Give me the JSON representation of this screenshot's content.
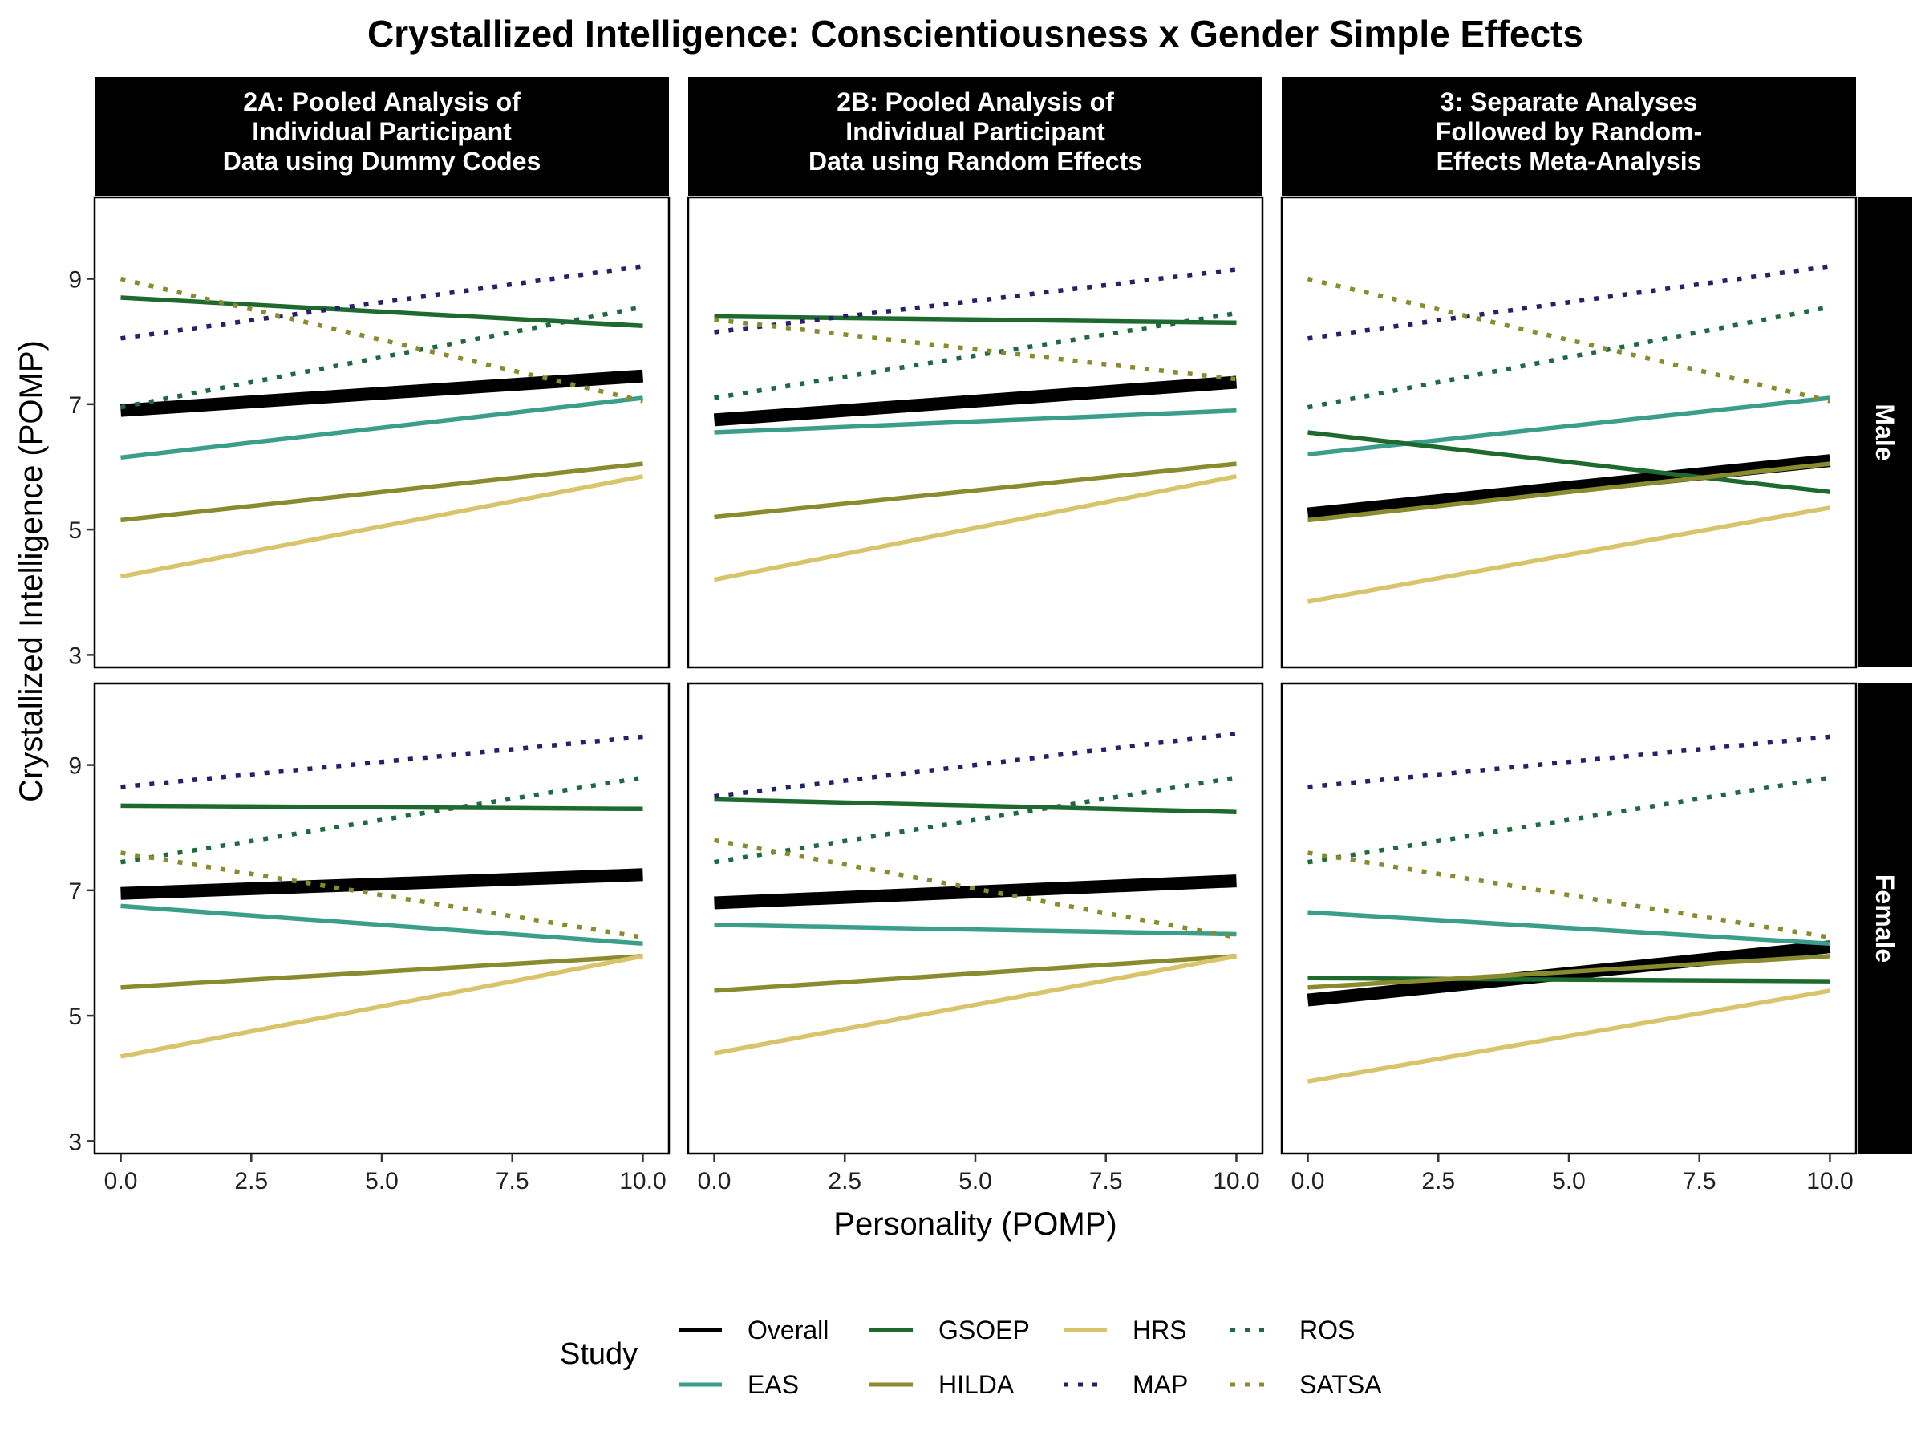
{
  "chart_data": {
    "type": "line",
    "title": "Crystallized Intelligence: Conscientiousness x Gender Simple Effects",
    "xlabel": "Personality (POMP)",
    "ylabel": "Crystallized Intelligence (POMP)",
    "xlim": [
      -0.5,
      10.5
    ],
    "ylim": [
      2.8,
      10.3
    ],
    "x_ticks": [
      "0.0",
      "2.5",
      "5.0",
      "7.5",
      "10.0"
    ],
    "y_ticks": [
      "3",
      "5",
      "7",
      "9"
    ],
    "grid": false,
    "legend_position": "bottom",
    "legend_title": "Study",
    "columns": [
      {
        "line1": "2A: Pooled Analysis of",
        "line2": "Individual Participant",
        "line3": "Data using Dummy Codes"
      },
      {
        "line1": "2B: Pooled Analysis of",
        "line2": "Individual Participant",
        "line3": "Data using Random Effects"
      },
      {
        "line1": "3: Separate Analyses",
        "line2": "Followed by Random-",
        "line3": "Effects Meta-Analysis"
      }
    ],
    "rows": [
      "Male",
      "Female"
    ],
    "studies": [
      {
        "name": "Overall",
        "color": "#000000",
        "dash": "solid",
        "weight": "thick"
      },
      {
        "name": "EAS",
        "color": "#3a9e8b",
        "dash": "solid",
        "weight": "normal"
      },
      {
        "name": "GSOEP",
        "color": "#1e6a2e",
        "dash": "solid",
        "weight": "normal"
      },
      {
        "name": "HILDA",
        "color": "#8a8a2e",
        "dash": "solid",
        "weight": "normal"
      },
      {
        "name": "HRS",
        "color": "#d8c46b",
        "dash": "solid",
        "weight": "normal"
      },
      {
        "name": "MAP",
        "color": "#24206a",
        "dash": "dotted",
        "weight": "normal"
      },
      {
        "name": "ROS",
        "color": "#1e6a3e",
        "dash": "dotted",
        "weight": "normal"
      },
      {
        "name": "SATSA",
        "color": "#8a8a2e",
        "dash": "dotted",
        "weight": "normal"
      }
    ],
    "legend_layout": [
      [
        "Overall",
        "GSOEP",
        "HRS",
        "ROS"
      ],
      [
        "EAS",
        "HILDA",
        "MAP",
        "SATSA"
      ]
    ],
    "panels": [
      {
        "column": 0,
        "row": 0,
        "series": [
          {
            "study": "Overall",
            "x": [
              0,
              10
            ],
            "y": [
              6.9,
              7.45
            ]
          },
          {
            "study": "EAS",
            "x": [
              0,
              10
            ],
            "y": [
              6.15,
              7.1
            ]
          },
          {
            "study": "GSOEP",
            "x": [
              0,
              10
            ],
            "y": [
              8.7,
              8.25
            ]
          },
          {
            "study": "HILDA",
            "x": [
              0,
              10
            ],
            "y": [
              5.15,
              6.05
            ]
          },
          {
            "study": "HRS",
            "x": [
              0,
              10
            ],
            "y": [
              4.25,
              5.85
            ]
          },
          {
            "study": "MAP",
            "x": [
              0,
              10
            ],
            "y": [
              8.05,
              9.2
            ]
          },
          {
            "study": "ROS",
            "x": [
              0,
              10
            ],
            "y": [
              6.95,
              8.55
            ]
          },
          {
            "study": "SATSA",
            "x": [
              0,
              10
            ],
            "y": [
              9.0,
              7.05
            ]
          }
        ]
      },
      {
        "column": 1,
        "row": 0,
        "series": [
          {
            "study": "Overall",
            "x": [
              0,
              10
            ],
            "y": [
              6.75,
              7.35
            ]
          },
          {
            "study": "EAS",
            "x": [
              0,
              10
            ],
            "y": [
              6.55,
              6.9
            ]
          },
          {
            "study": "GSOEP",
            "x": [
              0,
              10
            ],
            "y": [
              8.4,
              8.3
            ]
          },
          {
            "study": "HILDA",
            "x": [
              0,
              10
            ],
            "y": [
              5.2,
              6.05
            ]
          },
          {
            "study": "HRS",
            "x": [
              0,
              10
            ],
            "y": [
              4.2,
              5.85
            ]
          },
          {
            "study": "MAP",
            "x": [
              0,
              10
            ],
            "y": [
              8.15,
              9.15
            ]
          },
          {
            "study": "ROS",
            "x": [
              0,
              10
            ],
            "y": [
              7.1,
              8.45
            ]
          },
          {
            "study": "SATSA",
            "x": [
              0,
              10
            ],
            "y": [
              8.35,
              7.4
            ]
          }
        ]
      },
      {
        "column": 2,
        "row": 0,
        "series": [
          {
            "study": "Overall",
            "x": [
              0,
              10
            ],
            "y": [
              5.25,
              6.1
            ]
          },
          {
            "study": "EAS",
            "x": [
              0,
              10
            ],
            "y": [
              6.2,
              7.1
            ]
          },
          {
            "study": "GSOEP",
            "x": [
              0,
              10
            ],
            "y": [
              6.55,
              5.6
            ]
          },
          {
            "study": "HILDA",
            "x": [
              0,
              10
            ],
            "y": [
              5.15,
              6.05
            ]
          },
          {
            "study": "HRS",
            "x": [
              0,
              10
            ],
            "y": [
              3.85,
              5.35
            ]
          },
          {
            "study": "MAP",
            "x": [
              0,
              10
            ],
            "y": [
              8.05,
              9.2
            ]
          },
          {
            "study": "ROS",
            "x": [
              0,
              10
            ],
            "y": [
              6.95,
              8.55
            ]
          },
          {
            "study": "SATSA",
            "x": [
              0,
              10
            ],
            "y": [
              9.0,
              7.05
            ]
          }
        ]
      },
      {
        "column": 0,
        "row": 1,
        "series": [
          {
            "study": "Overall",
            "x": [
              0,
              10
            ],
            "y": [
              6.95,
              7.25
            ]
          },
          {
            "study": "EAS",
            "x": [
              0,
              10
            ],
            "y": [
              6.75,
              6.15
            ]
          },
          {
            "study": "GSOEP",
            "x": [
              0,
              10
            ],
            "y": [
              8.35,
              8.3
            ]
          },
          {
            "study": "HILDA",
            "x": [
              0,
              10
            ],
            "y": [
              5.45,
              5.95
            ]
          },
          {
            "study": "HRS",
            "x": [
              0,
              10
            ],
            "y": [
              4.35,
              5.95
            ]
          },
          {
            "study": "MAP",
            "x": [
              0,
              10
            ],
            "y": [
              8.65,
              9.45
            ]
          },
          {
            "study": "ROS",
            "x": [
              0,
              10
            ],
            "y": [
              7.45,
              8.8
            ]
          },
          {
            "study": "SATSA",
            "x": [
              0,
              10
            ],
            "y": [
              7.6,
              6.25
            ]
          }
        ]
      },
      {
        "column": 1,
        "row": 1,
        "series": [
          {
            "study": "Overall",
            "x": [
              0,
              10
            ],
            "y": [
              6.8,
              7.15
            ]
          },
          {
            "study": "EAS",
            "x": [
              0,
              10
            ],
            "y": [
              6.45,
              6.3
            ]
          },
          {
            "study": "GSOEP",
            "x": [
              0,
              10
            ],
            "y": [
              8.45,
              8.25
            ]
          },
          {
            "study": "HILDA",
            "x": [
              0,
              10
            ],
            "y": [
              5.4,
              5.95
            ]
          },
          {
            "study": "HRS",
            "x": [
              0,
              10
            ],
            "y": [
              4.4,
              5.95
            ]
          },
          {
            "study": "MAP",
            "x": [
              0,
              10
            ],
            "y": [
              8.5,
              9.5
            ]
          },
          {
            "study": "ROS",
            "x": [
              0,
              10
            ],
            "y": [
              7.45,
              8.8
            ]
          },
          {
            "study": "SATSA",
            "x": [
              0,
              10
            ],
            "y": [
              7.8,
              6.25
            ]
          }
        ]
      },
      {
        "column": 2,
        "row": 1,
        "series": [
          {
            "study": "Overall",
            "x": [
              0,
              10
            ],
            "y": [
              5.25,
              6.1
            ]
          },
          {
            "study": "EAS",
            "x": [
              0,
              10
            ],
            "y": [
              6.65,
              6.15
            ]
          },
          {
            "study": "GSOEP",
            "x": [
              0,
              10
            ],
            "y": [
              5.6,
              5.55
            ]
          },
          {
            "study": "HILDA",
            "x": [
              0,
              10
            ],
            "y": [
              5.45,
              5.95
            ]
          },
          {
            "study": "HRS",
            "x": [
              0,
              10
            ],
            "y": [
              3.95,
              5.4
            ]
          },
          {
            "study": "MAP",
            "x": [
              0,
              10
            ],
            "y": [
              8.65,
              9.45
            ]
          },
          {
            "study": "ROS",
            "x": [
              0,
              10
            ],
            "y": [
              7.45,
              8.8
            ]
          },
          {
            "study": "SATSA",
            "x": [
              0,
              10
            ],
            "y": [
              7.6,
              6.25
            ]
          }
        ]
      }
    ]
  }
}
